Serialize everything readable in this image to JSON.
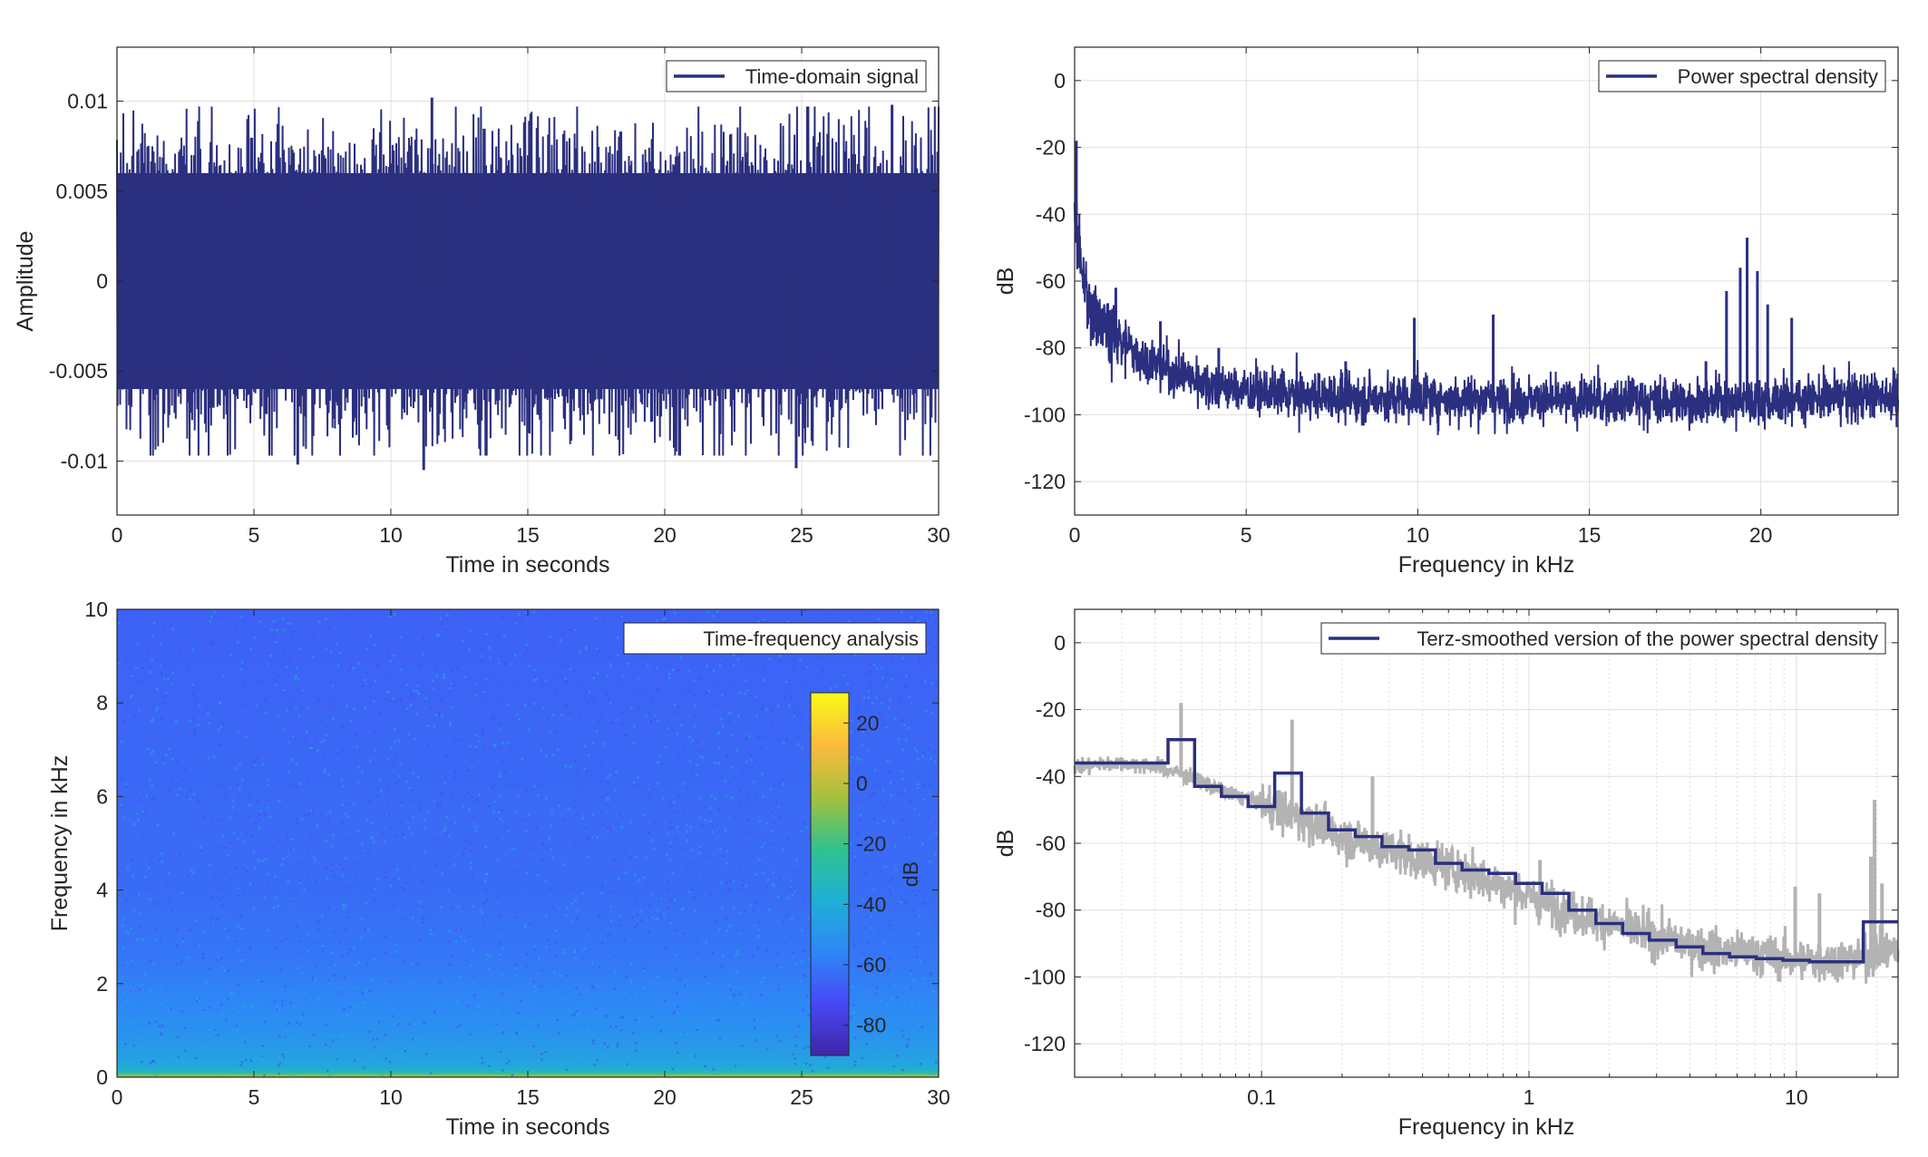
{
  "colors": {
    "series": "#2b2f7f",
    "raw_psd": "#b3b3b3",
    "grid": "#dfdfdf",
    "axes": "#262626",
    "spectrogram_background": "#2e6cf2",
    "colormap": [
      "#3e26a8",
      "#4748f5",
      "#2e87f7",
      "#1fb0d5",
      "#31c28c",
      "#a6c13c",
      "#fcbb3d",
      "#f9fb15"
    ]
  },
  "chart_data": [
    {
      "id": "time",
      "type": "line",
      "legend": "Time-domain signal",
      "legend_position": "top-right",
      "xlabel": "Time in seconds",
      "ylabel": "Amplitude",
      "xlim": [
        0,
        30
      ],
      "ylim": [
        -0.013,
        0.013
      ],
      "xticks": [
        0,
        5,
        10,
        15,
        20,
        25,
        30
      ],
      "xtick_labels": [
        "0",
        "5",
        "10",
        "15",
        "20",
        "25",
        "30"
      ],
      "yticks": [
        -0.01,
        -0.005,
        0,
        0.005,
        0.01
      ],
      "ytick_labels": [
        "-0.01",
        "-0.005",
        "0",
        "0.005",
        "0.01"
      ],
      "grid": true,
      "envelope": {
        "core_amplitude": 0.006,
        "peak_amplitude_typical": 0.0085,
        "extreme_peaks": [
          {
            "x": 6.6,
            "y": -0.0102
          },
          {
            "x": 11.2,
            "y": -0.0105
          },
          {
            "x": 11.5,
            "y": 0.0102
          },
          {
            "x": 24.8,
            "y": -0.0104
          },
          {
            "x": 28.3,
            "y": 0.0098
          }
        ]
      }
    },
    {
      "id": "psd",
      "type": "line",
      "legend": "Power spectral density",
      "legend_position": "top-right",
      "xlabel": "Frequency in kHz",
      "ylabel": "dB",
      "xlim": [
        0,
        24
      ],
      "ylim": [
        -130,
        10
      ],
      "xticks": [
        0,
        5,
        10,
        15,
        20
      ],
      "xtick_labels": [
        "0",
        "5",
        "10",
        "15",
        "20"
      ],
      "yticks": [
        0,
        -20,
        -40,
        -60,
        -80,
        -100,
        -120
      ],
      "ytick_labels": [
        "0",
        "-20",
        "-40",
        "-60",
        "-80",
        "-100",
        "-120"
      ],
      "grid": true,
      "baseline": {
        "x": [
          0,
          0.05,
          0.2,
          0.5,
          1,
          2,
          3,
          4,
          5,
          6,
          8,
          10,
          15,
          20,
          24
        ],
        "y": [
          -35,
          -45,
          -58,
          -68,
          -75,
          -83,
          -88,
          -91,
          -93,
          -94,
          -95,
          -95,
          -96,
          -96,
          -94
        ]
      },
      "noise_band_db": 4,
      "peaks": [
        {
          "x": 0.05,
          "y": -18
        },
        {
          "x": 1.2,
          "y": -62
        },
        {
          "x": 2.5,
          "y": -72
        },
        {
          "x": 4.2,
          "y": -80
        },
        {
          "x": 7.9,
          "y": -84
        },
        {
          "x": 9.9,
          "y": -71
        },
        {
          "x": 12.2,
          "y": -70
        },
        {
          "x": 18.4,
          "y": -84
        },
        {
          "x": 19.0,
          "y": -63
        },
        {
          "x": 19.4,
          "y": -56
        },
        {
          "x": 19.6,
          "y": -47
        },
        {
          "x": 19.9,
          "y": -57
        },
        {
          "x": 20.2,
          "y": -67
        },
        {
          "x": 20.9,
          "y": -71
        }
      ]
    },
    {
      "id": "spectrogram",
      "type": "heatmap",
      "legend": "Time-frequency analysis",
      "legend_position": "top-right",
      "xlabel": "Time in seconds",
      "ylabel": "Frequency in kHz",
      "xlim": [
        0,
        30
      ],
      "ylim": [
        0,
        10
      ],
      "xticks": [
        0,
        5,
        10,
        15,
        20,
        25,
        30
      ],
      "xtick_labels": [
        "0",
        "5",
        "10",
        "15",
        "20",
        "25",
        "30"
      ],
      "yticks": [
        0,
        2,
        4,
        6,
        8,
        10
      ],
      "ytick_labels": [
        "0",
        "2",
        "4",
        "6",
        "8",
        "10"
      ],
      "grid": false,
      "colorbar": {
        "label": "dB",
        "range": [
          -90,
          30
        ],
        "ticks": [
          20,
          0,
          -20,
          -40,
          -60,
          -80
        ],
        "tick_labels": [
          "20",
          "0",
          "-20",
          "-40",
          "-60",
          "-80"
        ]
      },
      "level_profile": {
        "frequency_khz": [
          0,
          0.05,
          0.15,
          0.4,
          0.8,
          1.5,
          2.5,
          4,
          10
        ],
        "level_db": [
          5,
          -20,
          -40,
          -45,
          -50,
          -55,
          -60,
          -63,
          -66
        ]
      }
    },
    {
      "id": "terz",
      "type": "line",
      "legend": "Terz-smoothed version of the power spectral density",
      "legend_position": "top-right",
      "xlabel": "Frequency in kHz",
      "ylabel": "dB",
      "xscale": "log",
      "xlim": [
        0.02,
        24
      ],
      "ylim": [
        -130,
        10
      ],
      "xticks": [
        0.1,
        1,
        10
      ],
      "xtick_labels": [
        "0.1",
        "1",
        "10"
      ],
      "yticks": [
        0,
        -20,
        -40,
        -60,
        -80,
        -100,
        -120
      ],
      "ytick_labels": [
        "0",
        "-20",
        "-40",
        "-60",
        "-80",
        "-100",
        "-120"
      ],
      "grid": true,
      "series": [
        {
          "style": "raw",
          "x": [
            0.02,
            0.03,
            0.04,
            0.05,
            0.07,
            0.1,
            0.15,
            0.2,
            0.3,
            0.5,
            0.7,
            1,
            1.5,
            2,
            3,
            5,
            7,
            10,
            15,
            20,
            24
          ],
          "y": [
            -37,
            -36,
            -37,
            -39,
            -44,
            -48,
            -53,
            -58,
            -62,
            -67,
            -71,
            -76,
            -81,
            -84,
            -88,
            -92,
            -93,
            -95,
            -95,
            -93,
            -92
          ],
          "spikes": [
            {
              "x": 0.05,
              "y": -18
            },
            {
              "x": 0.13,
              "y": -23
            },
            {
              "x": 0.26,
              "y": -40
            },
            {
              "x": 1.1,
              "y": -65
            },
            {
              "x": 9.9,
              "y": -73
            },
            {
              "x": 12.2,
              "y": -75
            },
            {
              "x": 19.0,
              "y": -64
            },
            {
              "x": 19.6,
              "y": -47
            },
            {
              "x": 20.9,
              "y": -72
            }
          ]
        },
        {
          "style": "smoothed",
          "steps": [
            {
              "x0": 0.02,
              "x1": 0.0447,
              "y": -36
            },
            {
              "x0": 0.0447,
              "x1": 0.0562,
              "y": -29
            },
            {
              "x0": 0.0562,
              "x1": 0.0708,
              "y": -43
            },
            {
              "x0": 0.0708,
              "x1": 0.0891,
              "y": -46
            },
            {
              "x0": 0.0891,
              "x1": 0.112,
              "y": -49
            },
            {
              "x0": 0.112,
              "x1": 0.141,
              "y": -39
            },
            {
              "x0": 0.141,
              "x1": 0.178,
              "y": -51
            },
            {
              "x0": 0.178,
              "x1": 0.224,
              "y": -56
            },
            {
              "x0": 0.224,
              "x1": 0.282,
              "y": -58
            },
            {
              "x0": 0.282,
              "x1": 0.355,
              "y": -61
            },
            {
              "x0": 0.355,
              "x1": 0.447,
              "y": -62
            },
            {
              "x0": 0.447,
              "x1": 0.562,
              "y": -66
            },
            {
              "x0": 0.562,
              "x1": 0.708,
              "y": -68
            },
            {
              "x0": 0.708,
              "x1": 0.891,
              "y": -69
            },
            {
              "x0": 0.891,
              "x1": 1.12,
              "y": -72
            },
            {
              "x0": 1.12,
              "x1": 1.41,
              "y": -75
            },
            {
              "x0": 1.41,
              "x1": 1.78,
              "y": -80
            },
            {
              "x0": 1.78,
              "x1": 2.24,
              "y": -84
            },
            {
              "x0": 2.24,
              "x1": 2.82,
              "y": -87
            },
            {
              "x0": 2.82,
              "x1": 3.55,
              "y": -89
            },
            {
              "x0": 3.55,
              "x1": 4.47,
              "y": -91
            },
            {
              "x0": 4.47,
              "x1": 5.62,
              "y": -93
            },
            {
              "x0": 5.62,
              "x1": 7.08,
              "y": -94
            },
            {
              "x0": 7.08,
              "x1": 8.91,
              "y": -94.5
            },
            {
              "x0": 8.91,
              "x1": 11.2,
              "y": -95
            },
            {
              "x0": 11.2,
              "x1": 17.8,
              "y": -95.5
            },
            {
              "x0": 17.8,
              "x1": 24,
              "y": -83.5
            }
          ]
        }
      ]
    }
  ]
}
